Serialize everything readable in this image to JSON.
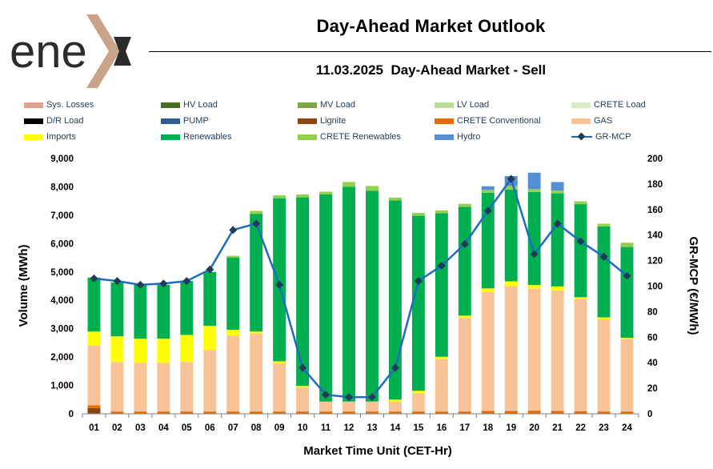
{
  "header": {
    "logo_text": "ene",
    "title": "Day-Ahead Market Outlook",
    "subtitle": "11.03.2025  Day-Ahead Market - Sell"
  },
  "chart_data": {
    "type": "bar",
    "stacked": true,
    "xlabel": "Market Time Unit (CET-Hr)",
    "ylabel": "Volume (MWh)",
    "y2label": "GR-MCP (€/MWh)",
    "ylim": [
      0,
      9000
    ],
    "y2lim": [
      0,
      200
    ],
    "yticks": [
      "0",
      "1,000",
      "2,000",
      "3,000",
      "4,000",
      "5,000",
      "6,000",
      "7,000",
      "8,000",
      "9,000"
    ],
    "y2ticks": [
      "0",
      "20",
      "40",
      "60",
      "80",
      "100",
      "120",
      "140",
      "160",
      "180",
      "200"
    ],
    "grid": false,
    "legend_position": "top",
    "categories": [
      "01",
      "02",
      "03",
      "04",
      "05",
      "06",
      "07",
      "08",
      "09",
      "10",
      "11",
      "12",
      "13",
      "14",
      "15",
      "16",
      "17",
      "18",
      "19",
      "20",
      "21",
      "22",
      "23",
      "24"
    ],
    "series": [
      {
        "name": "Sys. Losses",
        "color": "#e0a090",
        "kind": "bar",
        "values": [
          0,
          0,
          0,
          0,
          0,
          0,
          0,
          0,
          0,
          0,
          0,
          0,
          0,
          0,
          0,
          0,
          0,
          0,
          0,
          0,
          0,
          0,
          0,
          0
        ]
      },
      {
        "name": "HV Load",
        "color": "#4a6e28",
        "kind": "bar",
        "values": [
          0,
          0,
          0,
          0,
          0,
          0,
          0,
          0,
          0,
          0,
          0,
          0,
          0,
          0,
          0,
          0,
          0,
          0,
          0,
          0,
          0,
          0,
          0,
          0
        ]
      },
      {
        "name": "MV Load",
        "color": "#7ea54a",
        "kind": "bar",
        "values": [
          0,
          0,
          0,
          0,
          0,
          0,
          0,
          0,
          0,
          0,
          0,
          0,
          0,
          0,
          0,
          0,
          0,
          0,
          0,
          0,
          0,
          0,
          0,
          0
        ]
      },
      {
        "name": "LV Load",
        "color": "#bcdc9c",
        "kind": "bar",
        "values": [
          0,
          0,
          0,
          0,
          0,
          0,
          0,
          0,
          0,
          0,
          0,
          0,
          0,
          0,
          0,
          0,
          0,
          0,
          0,
          0,
          0,
          0,
          0,
          0
        ]
      },
      {
        "name": "CRETE Load",
        "color": "#d7ebc8",
        "kind": "bar",
        "values": [
          0,
          0,
          0,
          0,
          0,
          0,
          0,
          0,
          0,
          0,
          0,
          0,
          0,
          0,
          0,
          0,
          0,
          0,
          0,
          0,
          0,
          0,
          0,
          0
        ]
      },
      {
        "name": "D/R Load",
        "color": "#000000",
        "kind": "bar",
        "values": [
          0,
          0,
          0,
          0,
          0,
          0,
          0,
          0,
          0,
          0,
          0,
          0,
          0,
          0,
          0,
          0,
          0,
          0,
          0,
          0,
          0,
          0,
          0,
          0
        ]
      },
      {
        "name": "PUMP",
        "color": "#2d5d8f",
        "kind": "bar",
        "values": [
          0,
          0,
          0,
          0,
          0,
          0,
          0,
          0,
          0,
          0,
          0,
          0,
          0,
          0,
          0,
          0,
          0,
          0,
          0,
          0,
          0,
          0,
          0,
          0
        ]
      },
      {
        "name": "Lignite",
        "color": "#8b4513",
        "kind": "bar",
        "values": [
          200,
          0,
          0,
          0,
          0,
          0,
          0,
          0,
          0,
          0,
          0,
          0,
          0,
          0,
          0,
          0,
          0,
          0,
          0,
          0,
          0,
          0,
          0,
          0
        ]
      },
      {
        "name": "CRETE Conventional",
        "color": "#e36c09",
        "kind": "bar",
        "values": [
          100,
          80,
          80,
          80,
          80,
          80,
          80,
          80,
          80,
          80,
          80,
          80,
          80,
          80,
          80,
          80,
          80,
          100,
          100,
          110,
          100,
          90,
          80,
          80
        ]
      },
      {
        "name": "GAS",
        "color": "#f8c497",
        "kind": "bar",
        "values": [
          2100,
          1750,
          1720,
          1720,
          1750,
          2170,
          2680,
          2750,
          1700,
          850,
          350,
          350,
          350,
          350,
          650,
          1850,
          3300,
          4200,
          4400,
          4300,
          4250,
          3950,
          3250,
          2550
        ]
      },
      {
        "name": "Imports",
        "color": "#ffff00",
        "kind": "bar",
        "values": [
          500,
          900,
          850,
          850,
          950,
          850,
          200,
          70,
          70,
          50,
          0,
          0,
          0,
          70,
          80,
          80,
          80,
          120,
          170,
          130,
          140,
          70,
          70,
          50
        ]
      },
      {
        "name": "Renewables",
        "color": "#00b050",
        "kind": "bar",
        "values": [
          1900,
          1900,
          1900,
          1900,
          1900,
          1900,
          2550,
          4150,
          5750,
          6650,
          7300,
          7570,
          7430,
          7020,
          6170,
          5060,
          3840,
          3370,
          3230,
          3280,
          3280,
          3280,
          3200,
          3200
        ]
      },
      {
        "name": "CRETE Renewables",
        "color": "#92d050",
        "kind": "bar",
        "values": [
          0,
          0,
          0,
          0,
          0,
          0,
          60,
          100,
          100,
          100,
          100,
          170,
          170,
          100,
          100,
          100,
          100,
          100,
          130,
          100,
          100,
          100,
          100,
          150
        ]
      },
      {
        "name": "Hydro",
        "color": "#558ed5",
        "kind": "bar",
        "values": [
          0,
          0,
          0,
          0,
          0,
          0,
          0,
          0,
          0,
          0,
          0,
          0,
          0,
          0,
          0,
          0,
          0,
          130,
          350,
          580,
          300,
          0,
          0,
          0
        ]
      },
      {
        "name": "GR-MCP",
        "color": "#1f6bbf",
        "marker_color": "#1f3b57",
        "kind": "line",
        "axis": "y2",
        "values": [
          106,
          104,
          101,
          102,
          104,
          113,
          144,
          149,
          101,
          36,
          15,
          13,
          13,
          36,
          104,
          116,
          133,
          159,
          184,
          125,
          149,
          135,
          123,
          108
        ]
      }
    ]
  }
}
